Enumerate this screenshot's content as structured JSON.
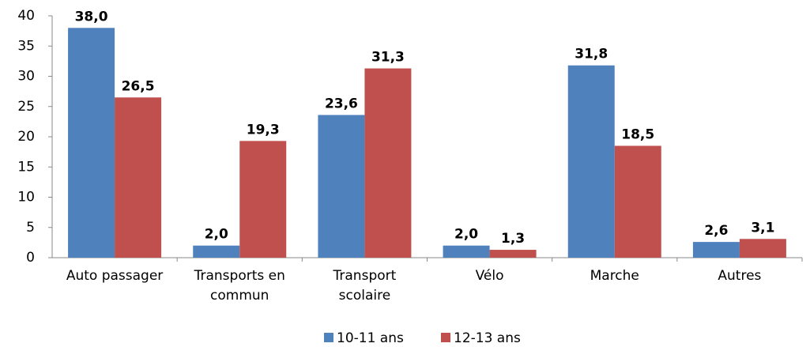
{
  "chart_data": {
    "type": "bar",
    "categories": [
      "Auto passager",
      "Transports en commun",
      "Transport scolaire",
      "Vélo",
      "Marche",
      "Autres"
    ],
    "series": [
      {
        "name": "10-11 ans",
        "color": "#4f81bd",
        "values": [
          38.0,
          2.0,
          23.6,
          2.0,
          31.8,
          2.6
        ],
        "value_labels": [
          "38,0",
          "2,0",
          "23,6",
          "2,0",
          "31,8",
          "2,6"
        ]
      },
      {
        "name": "12-13 ans",
        "color": "#c0504d",
        "values": [
          26.5,
          19.3,
          31.3,
          1.3,
          18.5,
          3.1
        ],
        "value_labels": [
          "26,5",
          "19,3",
          "31,3",
          "1,3",
          "18,5",
          "3,1"
        ]
      }
    ],
    "ylim": [
      0,
      40
    ],
    "yticks": [
      0,
      5,
      10,
      15,
      20,
      25,
      30,
      35,
      40
    ],
    "grid": false,
    "legend": "bottom"
  }
}
